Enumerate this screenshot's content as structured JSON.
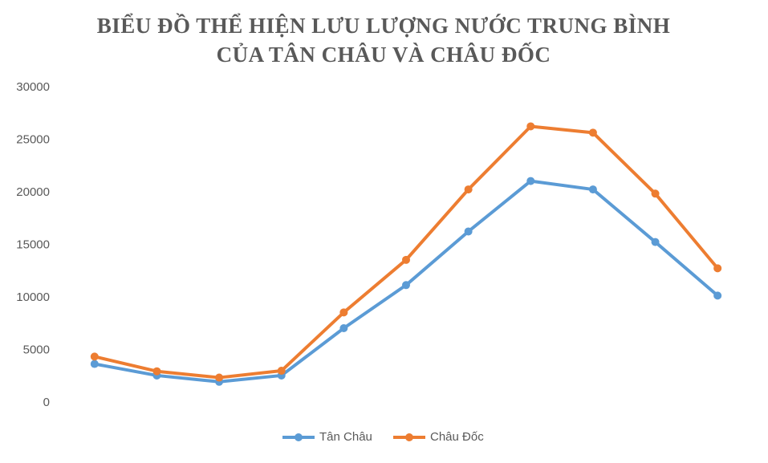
{
  "chart_data": {
    "type": "line",
    "title": [
      "BIỂU ĐỒ THỂ HIỆN LƯU LƯỢNG NƯỚC TRUNG BÌNH",
      "CỦA TÂN CHÂU VÀ CHÂU ĐỐC"
    ],
    "categories": [
      null,
      null,
      null,
      null,
      null,
      null,
      null,
      null,
      null,
      null,
      null
    ],
    "series": [
      {
        "name": "Tân Châu",
        "color": "#5b9bd5",
        "values": [
          3700,
          2600,
          2000,
          2600,
          7100,
          11200,
          16300,
          21100,
          20300,
          15300,
          10200
        ]
      },
      {
        "name": "Châu Đốc",
        "color": "#ed7d31",
        "values": [
          4400,
          3000,
          2400,
          3050,
          8600,
          13600,
          20300,
          26300,
          25700,
          19900,
          12800
        ]
      }
    ],
    "ylim": [
      0,
      30000
    ],
    "yticks": [
      0,
      5000,
      10000,
      15000,
      20000,
      25000,
      30000
    ],
    "grid": false,
    "legend": "bottom"
  }
}
